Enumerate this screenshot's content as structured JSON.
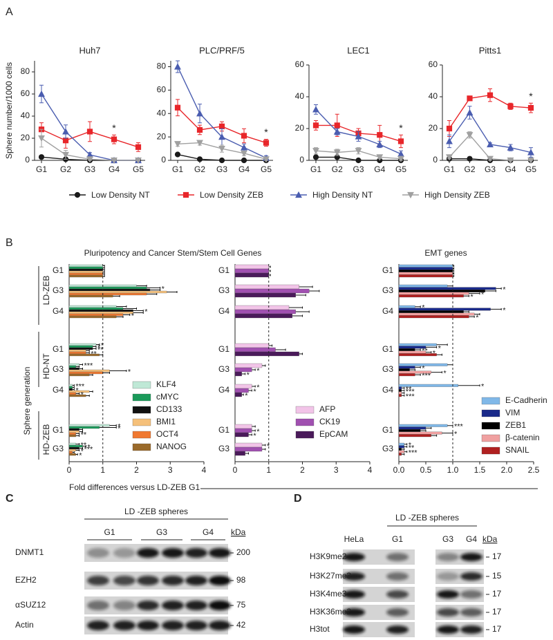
{
  "panel_labels": [
    "A",
    "B",
    "C",
    "D"
  ],
  "chart_data": [
    {
      "type": "line",
      "title": "Huh7",
      "ylabel": "Sphere number/1000 cells",
      "categories": [
        "G1",
        "G2",
        "G3",
        "G4",
        "G5"
      ],
      "ylim": [
        0,
        90
      ],
      "yticks": [
        0,
        20,
        40,
        60,
        80
      ],
      "significance": [
        null,
        null,
        null,
        "*",
        null
      ],
      "series": [
        {
          "name": "Low Density NT",
          "color": "#1a1a1a",
          "marker": "circle",
          "values": [
            3,
            1,
            0,
            0,
            0
          ],
          "errors": [
            1,
            1,
            0.5,
            0,
            0
          ]
        },
        {
          "name": "Low Density ZEB",
          "color": "#e8262a",
          "marker": "square",
          "values": [
            28,
            18,
            26,
            19,
            12
          ],
          "errors": [
            6,
            7,
            9,
            4,
            4
          ]
        },
        {
          "name": "High Density NT",
          "color": "#4a5db0",
          "marker": "triangle-up",
          "values": [
            60,
            26,
            5,
            0,
            0
          ],
          "errors": [
            8,
            6,
            2,
            0,
            0
          ]
        },
        {
          "name": "High Density ZEB",
          "color": "#a0a0a0",
          "marker": "triangle-down",
          "values": [
            20,
            5,
            1,
            0,
            0
          ],
          "errors": [
            8,
            4,
            1,
            0,
            0
          ]
        }
      ]
    },
    {
      "type": "line",
      "title": "PLC/PRF/5",
      "categories": [
        "G1",
        "G2",
        "G3",
        "G4",
        "G5"
      ],
      "ylim": [
        0,
        85
      ],
      "yticks": [
        0,
        20,
        40,
        60,
        80
      ],
      "significance": [
        null,
        null,
        null,
        null,
        "*"
      ],
      "series": [
        {
          "color": "#1a1a1a",
          "marker": "circle",
          "values": [
            5,
            1,
            0,
            0,
            0
          ],
          "errors": [
            1,
            1,
            0,
            0,
            0
          ]
        },
        {
          "color": "#e8262a",
          "marker": "square",
          "values": [
            45,
            26,
            29,
            21,
            15
          ],
          "errors": [
            7,
            4,
            4,
            6,
            3
          ]
        },
        {
          "color": "#4a5db0",
          "marker": "triangle-up",
          "values": [
            80,
            40,
            20,
            11,
            2
          ],
          "errors": [
            5,
            8,
            7,
            3,
            2
          ]
        },
        {
          "color": "#a0a0a0",
          "marker": "triangle-down",
          "values": [
            14,
            15,
            10,
            6,
            1
          ],
          "errors": [
            2,
            2,
            3,
            2,
            1
          ]
        }
      ]
    },
    {
      "type": "line",
      "title": "LEC1",
      "categories": [
        "G1",
        "G2",
        "G3",
        "G4",
        "G5"
      ],
      "ylim": [
        0,
        60
      ],
      "yticks": [
        0,
        20,
        40,
        60
      ],
      "significance": [
        null,
        null,
        null,
        null,
        "*"
      ],
      "series": [
        {
          "color": "#1a1a1a",
          "marker": "circle",
          "values": [
            2,
            2,
            0,
            0,
            0
          ],
          "errors": [
            1,
            1,
            0,
            0,
            0
          ]
        },
        {
          "color": "#e8262a",
          "marker": "square",
          "values": [
            22,
            22,
            17,
            16,
            12
          ],
          "errors": [
            3,
            7,
            3,
            6,
            4
          ]
        },
        {
          "color": "#4a5db0",
          "marker": "triangle-up",
          "values": [
            32,
            18,
            15,
            10,
            4
          ],
          "errors": [
            3,
            2,
            3,
            2,
            2
          ]
        },
        {
          "color": "#a0a0a0",
          "marker": "triangle-down",
          "values": [
            6,
            5,
            6,
            2,
            1
          ],
          "errors": [
            2,
            2,
            2,
            1,
            1
          ]
        }
      ]
    },
    {
      "type": "line",
      "title": "Pitts1",
      "categories": [
        "G1",
        "G2",
        "G3",
        "G4",
        "G5"
      ],
      "ylim": [
        0,
        60
      ],
      "yticks": [
        0,
        20,
        40,
        60
      ],
      "significance": [
        null,
        null,
        null,
        null,
        "*"
      ],
      "series": [
        {
          "color": "#1a1a1a",
          "marker": "circle",
          "values": [
            1,
            1,
            0,
            0,
            0
          ],
          "errors": [
            1,
            1,
            0,
            0,
            0
          ]
        },
        {
          "color": "#e8262a",
          "marker": "square",
          "values": [
            20,
            39,
            41,
            34,
            33
          ],
          "errors": [
            5,
            1,
            4,
            2,
            3
          ]
        },
        {
          "color": "#4a5db0",
          "marker": "triangle-up",
          "values": [
            12,
            30,
            10,
            8,
            5
          ],
          "errors": [
            4,
            4,
            1,
            2,
            3
          ]
        },
        {
          "color": "#a0a0a0",
          "marker": "triangle-down",
          "values": [
            2,
            16,
            1,
            0,
            0
          ],
          "errors": [
            1,
            2,
            1,
            0,
            0
          ]
        }
      ]
    },
    {
      "type": "bar",
      "categories": [
        "G1",
        "G3",
        "G4",
        "G1",
        "G3",
        "G4",
        "G1",
        "G3"
      ],
      "xlim": [
        0,
        4
      ],
      "xticks": [
        0,
        1,
        2,
        3,
        4
      ],
      "reference_line": 1,
      "series": [
        {
          "name": "KLF4",
          "color": "#bfe8d6",
          "values": [
            1,
            2.0,
            1.4,
            0.8,
            0.3,
            0.1,
            1.2,
            0.2
          ],
          "errors": [
            0.05,
            0.3,
            0.3,
            0.1,
            0.1,
            0.05,
            0.2,
            0.1
          ],
          "significance": [
            null,
            null,
            null,
            "*",
            "***",
            "***",
            "*",
            "**"
          ]
        },
        {
          "name": "cMYC",
          "color": "#1a9a5a",
          "values": [
            1,
            2.3,
            1.6,
            0.7,
            0.2,
            0.1,
            0.9,
            0.4
          ],
          "errors": [
            0.05,
            0.4,
            0.4,
            0.1,
            0.1,
            0.05,
            0.5,
            0.1
          ],
          "significance": [
            null,
            "*",
            null,
            "*",
            null,
            null,
            "*",
            "*"
          ]
        },
        {
          "name": "CD133",
          "color": "#111111",
          "values": [
            1,
            2.4,
            1.9,
            0.7,
            0.3,
            0.1,
            0.3,
            0.3
          ],
          "errors": [
            0.05,
            0.3,
            0.3,
            0.1,
            0.1,
            0.05,
            0.1,
            0.1
          ],
          "significance": [
            null,
            null,
            "*",
            "**",
            null,
            "*",
            null,
            "***"
          ]
        },
        {
          "name": "BMI1",
          "color": "#f5c07a",
          "values": [
            1,
            2.9,
            1.9,
            0.5,
            1.2,
            0.6,
            0.3,
            0.2
          ],
          "errors": [
            0.05,
            0.3,
            0.3,
            0.1,
            0.5,
            0.1,
            0.1,
            0.1
          ],
          "significance": [
            null,
            null,
            null,
            null,
            "*",
            null,
            null,
            "*"
          ]
        },
        {
          "name": "OCT4",
          "color": "#f07830",
          "values": [
            1,
            2.3,
            1.6,
            0.5,
            1.0,
            0.2,
            0.2,
            0.1
          ],
          "errors": [
            0.05,
            0.3,
            0.2,
            0.1,
            0.2,
            0.1,
            0.1,
            0.05
          ],
          "significance": [
            null,
            null,
            "*",
            "**",
            null,
            "*",
            "**",
            null
          ]
        },
        {
          "name": "NANOG",
          "color": "#9a6a2a",
          "values": [
            1,
            1.3,
            1.4,
            0.9,
            0.6,
            0.5,
            0.2,
            0.2
          ],
          "errors": [
            0.05,
            0.2,
            0.2,
            0.1,
            0.1,
            0.1,
            0.1,
            0.05
          ],
          "significance": [
            null,
            null,
            null,
            null,
            null,
            null,
            null,
            "*"
          ]
        }
      ]
    },
    {
      "type": "bar",
      "categories": [
        "G1",
        "G3",
        "G4",
        "G1",
        "G3",
        "G4",
        "G1",
        "G3"
      ],
      "xlim": [
        0,
        4
      ],
      "xticks": [
        0,
        1,
        2,
        3,
        4
      ],
      "reference_line": 1,
      "series": [
        {
          "name": "AFP",
          "color": "#f2c4e8",
          "values": [
            1,
            1.9,
            1.6,
            1.0,
            0.8,
            0.5,
            0.5,
            0.8
          ],
          "errors": [
            0.05,
            0.4,
            0.4,
            0.1,
            0.1,
            0.1,
            0.1,
            0.1
          ],
          "significance": [
            null,
            null,
            null,
            null,
            null,
            "*",
            null,
            "*"
          ]
        },
        {
          "name": "CK19",
          "color": "#a050b0",
          "values": [
            1,
            2.2,
            1.8,
            1.2,
            0.5,
            0.4,
            0.5,
            0.8
          ],
          "errors": [
            0.05,
            0.3,
            0.4,
            0.3,
            0.1,
            0.1,
            0.1,
            0.1
          ],
          "significance": [
            null,
            null,
            null,
            null,
            "*",
            "*",
            "*",
            null
          ]
        },
        {
          "name": "EpCAM",
          "color": "#4a1a5a",
          "values": [
            1,
            1.8,
            1.7,
            1.9,
            0.2,
            0.2,
            0.4,
            0.3
          ],
          "errors": [
            0.05,
            0.3,
            0.3,
            0.1,
            0.1,
            0.05,
            0.1,
            0.1
          ],
          "significance": [
            null,
            null,
            null,
            null,
            "*",
            "*",
            "*",
            null
          ]
        }
      ]
    },
    {
      "type": "bar",
      "categories": [
        "G1",
        "G3",
        "G4",
        "G1",
        "G3",
        "G4",
        "G1",
        "G3"
      ],
      "xlim": [
        0,
        2.5
      ],
      "xticks": [
        {
          "value": 0,
          "label": "0.0"
        },
        0.5,
        {
          "value": 1,
          "label": "1.0"
        },
        1.5,
        {
          "value": 2,
          "label": "2.0"
        },
        2.5
      ],
      "reference_line": 1,
      "series": [
        {
          "name": "E-Cadherin",
          "color": "#80b8e8",
          "values": [
            1,
            0.9,
            0.3,
            0.7,
            0.9,
            1.1,
            0.9,
            0.1
          ],
          "errors": [
            0.02,
            0.1,
            0.1,
            0.2,
            0.1,
            0.4,
            0.1,
            0.05
          ],
          "significance": [
            null,
            null,
            "*",
            null,
            null,
            "*",
            "***",
            "*"
          ]
        },
        {
          "name": "VIM",
          "color": "#1a2a8a",
          "values": [
            1,
            1.8,
            1.7,
            0.5,
            0.3,
            0.05,
            0.5,
            0.1
          ],
          "errors": [
            0.02,
            0.1,
            0.2,
            0.2,
            0.1,
            0.05,
            0.1,
            0.05
          ],
          "significance": [
            null,
            "*",
            "*",
            "*",
            "*",
            "**",
            null,
            "**"
          ]
        },
        {
          "name": "ZEB1",
          "color": "#000000",
          "values": [
            1,
            1.6,
            1.2,
            0.3,
            0.2,
            0.05,
            0.4,
            0.05
          ],
          "errors": [
            0.02,
            0.2,
            0.1,
            0.1,
            0.1,
            0.05,
            0.1,
            0.05
          ],
          "significance": [
            null,
            null,
            null,
            "**",
            null,
            "***",
            null,
            null
          ]
        },
        {
          "name": "β-catenin",
          "color": "#f0a0a0",
          "values": [
            1,
            1.3,
            1.4,
            0.5,
            0.6,
            0.05,
            0.8,
            0.1
          ],
          "errors": [
            0.02,
            0.2,
            0.1,
            0.1,
            0.2,
            0.05,
            0.2,
            0.05
          ],
          "significance": [
            null,
            "*",
            null,
            "*",
            "*",
            null,
            "*",
            "***"
          ]
        },
        {
          "name": "SNAIL",
          "color": "#b02020",
          "values": [
            1,
            1.2,
            1.3,
            0.7,
            0.3,
            0.05,
            0.6,
            0.05
          ],
          "errors": [
            0.02,
            0.1,
            0.1,
            0.1,
            0.1,
            0.05,
            0.1,
            0.05
          ],
          "significance": [
            null,
            "*",
            "*",
            null,
            "***",
            "***",
            null,
            null
          ]
        }
      ]
    }
  ],
  "panel_b": {
    "subtitles": [
      "Pluripotency and Cancer Stem/Stem Cell Genes",
      "EMT genes"
    ],
    "group_labels": [
      "LD-ZEB",
      "HD-NT",
      "HD-ZEB"
    ],
    "axis_title": "Sphere generation",
    "xlabel": "Fold  differences versus LD-ZEB G1"
  },
  "panel_c": {
    "header": "LD -ZEB spheres",
    "lanes": [
      "G1",
      "G3",
      "G4"
    ],
    "kda_label": "kDa",
    "rows": [
      {
        "label": "DNMT1",
        "kda": 200
      },
      {
        "label": "EZH2",
        "kda": 98
      },
      {
        "label": "αSUZ12",
        "kda": 75
      },
      {
        "label": "Actin",
        "kda": 42
      }
    ]
  },
  "panel_d": {
    "header": "LD -ZEB spheres",
    "lanes": [
      "HeLa",
      "G1",
      "G3",
      "G4"
    ],
    "kda_label": "kDa",
    "rows": [
      {
        "label": "H3K9me2",
        "kda": 17
      },
      {
        "label": "H3K27me3",
        "kda": 15
      },
      {
        "label": "H3K4me3",
        "kda": 17
      },
      {
        "label": "H3K36me2",
        "kda": 17
      },
      {
        "label": "H3tot",
        "kda": 17
      }
    ]
  }
}
